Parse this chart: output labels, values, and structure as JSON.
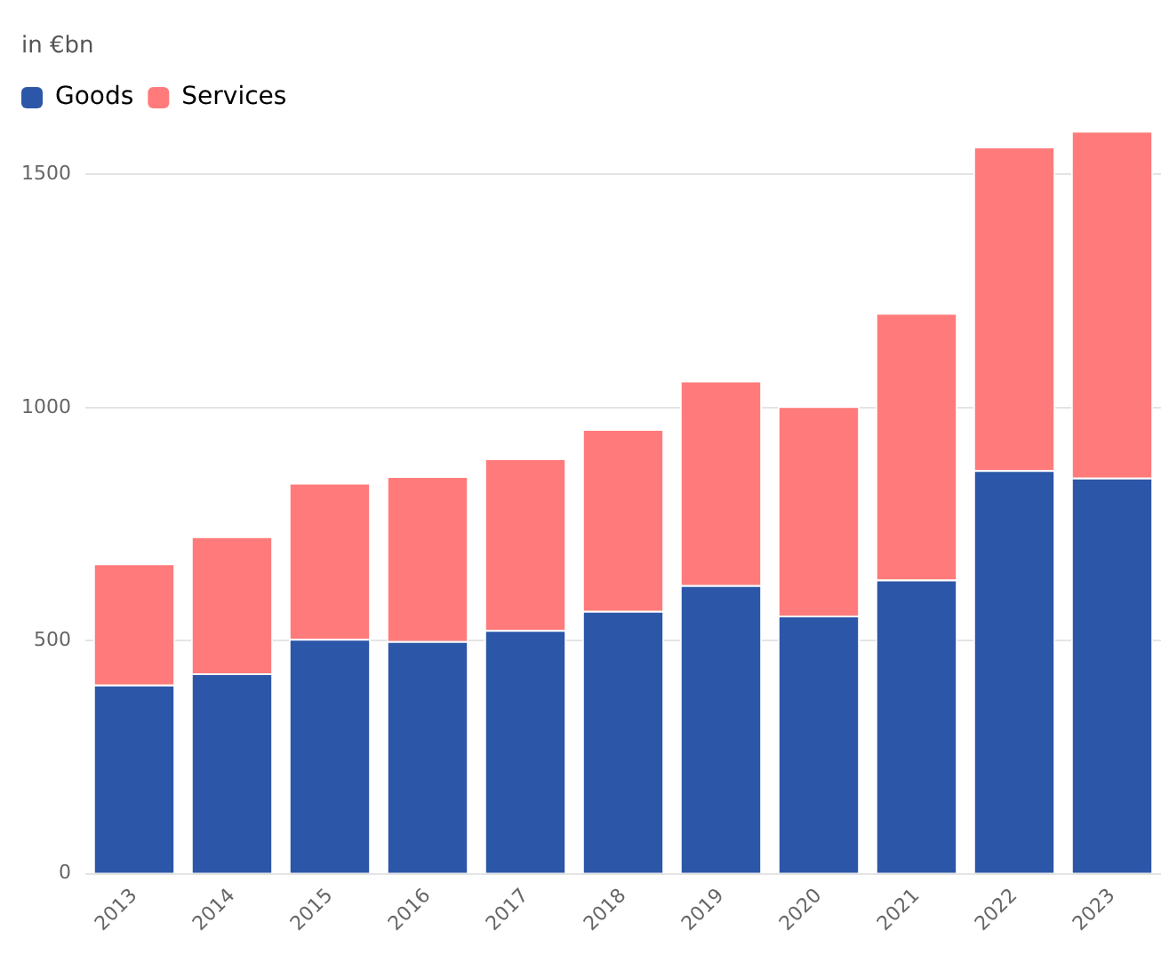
{
  "chart_data": {
    "type": "bar",
    "stacked": true,
    "ylabel": "in €bn",
    "categories": [
      "2013",
      "2014",
      "2015",
      "2016",
      "2017",
      "2018",
      "2019",
      "2020",
      "2021",
      "2022",
      "2023"
    ],
    "series": [
      {
        "name": "Goods",
        "color": "#2c56a8",
        "values": [
          406,
          430,
          504,
          499,
          523,
          564,
          619,
          554,
          631,
          866,
          850
        ]
      },
      {
        "name": "Services",
        "color": "#ff7b7b",
        "values": [
          260,
          294,
          335,
          354,
          368,
          390,
          439,
          449,
          572,
          694,
          744
        ]
      }
    ],
    "ylim": [
      0,
      1600
    ],
    "yticks": [
      0,
      500,
      1000,
      1500
    ],
    "grid": "y",
    "legend": "top left"
  }
}
